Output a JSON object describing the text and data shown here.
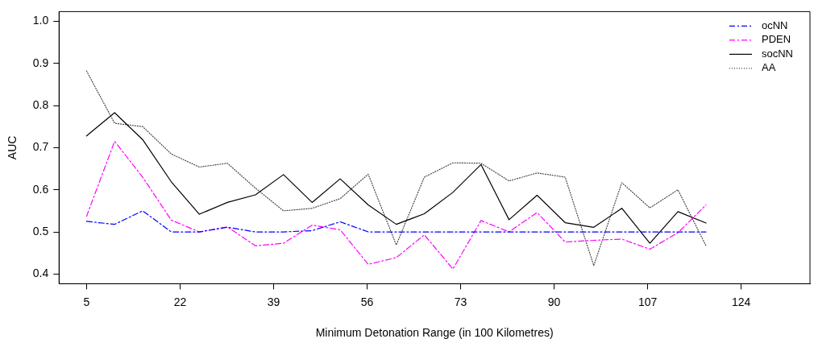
{
  "chart_data": {
    "type": "line",
    "xlabel": "Minimum Detonation Range (in 100 Kilometres)",
    "ylabel": "AUC",
    "x": [
      5,
      10.1,
      15.2,
      20.4,
      25.5,
      30.6,
      35.7,
      40.8,
      46,
      51.1,
      56.2,
      61.3,
      66.4,
      71.6,
      76.7,
      81.8,
      86.9,
      92,
      97.2,
      102.3,
      107.4,
      112.5,
      117.6
    ],
    "xlim": [
      0,
      136.5
    ],
    "xticks": [
      5,
      22,
      39,
      56,
      73,
      90,
      107,
      124
    ],
    "ylim": [
      0.377,
      1.023
    ],
    "yticks": [
      0.4,
      0.5,
      0.6,
      0.7,
      0.8,
      0.9,
      {
        "value": 1,
        "label": "1.0"
      }
    ],
    "grid": false,
    "legend": "top right",
    "marker": "none",
    "series": [
      {
        "name": "ocNN",
        "color": "#0000ff",
        "line_style": "dashed",
        "values": [
          0.525,
          0.518,
          0.55,
          0.5,
          0.5,
          0.511,
          0.5,
          0.5,
          0.503,
          0.524,
          0.5,
          0.5,
          0.5,
          0.5,
          0.5,
          0.5,
          0.5,
          0.5,
          0.5,
          0.5,
          0.5,
          0.5,
          0.5
        ]
      },
      {
        "name": "PDEN",
        "color": "#ff00ff",
        "line_style": "dashed",
        "values": [
          0.537,
          0.715,
          0.63,
          0.528,
          0.5,
          0.512,
          0.467,
          0.473,
          0.516,
          0.505,
          0.423,
          0.439,
          0.493,
          0.412,
          0.527,
          0.5,
          0.546,
          0.476,
          0.48,
          0.483,
          0.459,
          0.498,
          0.564
        ]
      },
      {
        "name": "socNN",
        "color": "#000000",
        "line_style": "solid",
        "values": [
          0.728,
          0.783,
          0.719,
          0.619,
          0.542,
          0.57,
          0.588,
          0.636,
          0.57,
          0.626,
          0.564,
          0.518,
          0.543,
          0.594,
          0.66,
          0.529,
          0.587,
          0.522,
          0.511,
          0.556,
          0.473,
          0.548,
          0.521
        ]
      },
      {
        "name": "AA",
        "color": "#444444",
        "line_style": "dotted",
        "values": [
          0.882,
          0.758,
          0.75,
          0.685,
          0.654,
          0.663,
          0.604,
          0.55,
          0.556,
          0.579,
          0.637,
          0.469,
          0.63,
          0.664,
          0.663,
          0.621,
          0.64,
          0.63,
          0.42,
          0.617,
          0.557,
          0.6,
          0.467
        ]
      }
    ]
  }
}
